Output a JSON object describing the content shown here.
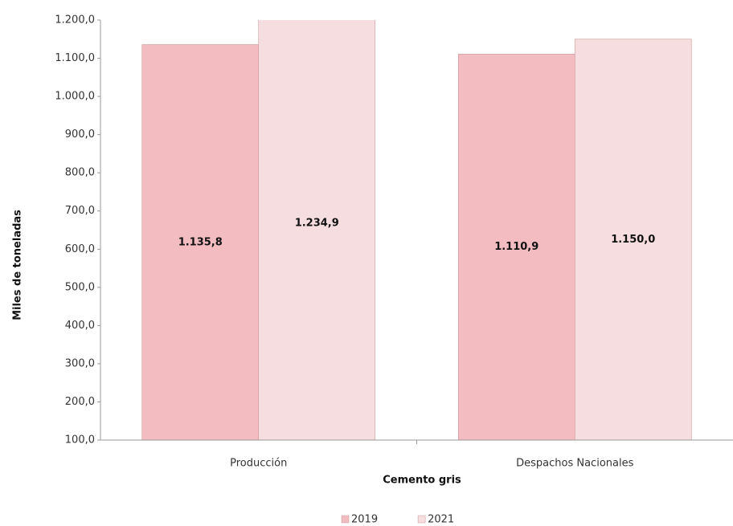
{
  "chart_data": {
    "type": "bar",
    "x_label": "Cemento gris",
    "y_label": "Miles de toneladas",
    "categories": [
      "Producción",
      "Despachos Nacionales"
    ],
    "series": [
      {
        "name": "2019",
        "color": "#f2bcc0",
        "values": [
          1135.8,
          1110.9
        ],
        "value_labels": [
          "1.135,8",
          "1.110,9"
        ]
      },
      {
        "name": "2021",
        "color": "#f6dde0",
        "values": [
          1234.9,
          1150.0
        ],
        "value_labels": [
          "1.234,9",
          "1.150,0"
        ]
      }
    ],
    "ylim": [
      100,
      1200
    ],
    "yticks": [
      {
        "value": 100,
        "label": "100,0"
      },
      {
        "value": 200,
        "label": "200,0"
      },
      {
        "value": 300,
        "label": "300,0"
      },
      {
        "value": 400,
        "label": "400,0"
      },
      {
        "value": 500,
        "label": "500,0"
      },
      {
        "value": 600,
        "label": "600,0"
      },
      {
        "value": 700,
        "label": "700,0"
      },
      {
        "value": 800,
        "label": "800,0"
      },
      {
        "value": 900,
        "label": "900,0"
      },
      {
        "value": 1000,
        "label": "1.000,0"
      },
      {
        "value": 1100,
        "label": "1.100,0"
      },
      {
        "value": 1200,
        "label": "1.200,0"
      }
    ],
    "grid": false,
    "legend": "bottom"
  }
}
